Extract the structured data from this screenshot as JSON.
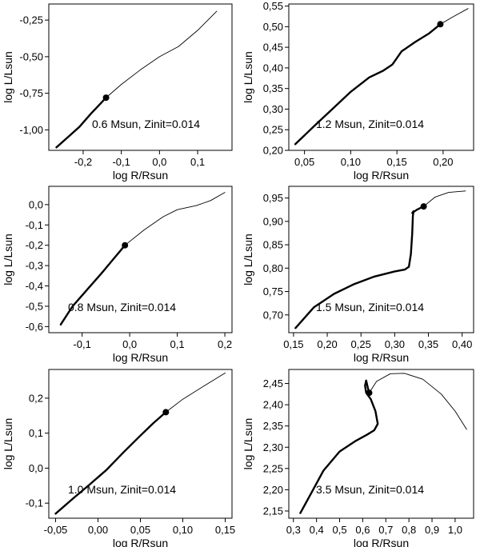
{
  "chart_data": [
    {
      "type": "line",
      "xlabel": "log R/Rsun",
      "ylabel": "log L/Lsun",
      "annotation": "0.6 Msun, Zinit=0.014",
      "xlim": [
        -0.29,
        0.19
      ],
      "ylim": [
        -1.14,
        -0.14
      ],
      "xticks": [
        -0.2,
        -0.1,
        0.0,
        0.1
      ],
      "xticklabels": [
        "-0,2",
        "-0,1",
        "0,0",
        "0,1"
      ],
      "yticks": [
        -1.0,
        -0.75,
        -0.5,
        -0.25
      ],
      "yticklabels": [
        "-1,00",
        "-0,75",
        "-0,50",
        "-0,25"
      ],
      "thick": [
        [
          -0.27,
          -1.12
        ],
        [
          -0.24,
          -1.05
        ],
        [
          -0.21,
          -0.98
        ],
        [
          -0.18,
          -0.89
        ],
        [
          -0.14,
          -0.78
        ]
      ],
      "thin": [
        [
          -0.14,
          -0.78
        ],
        [
          -0.1,
          -0.69
        ],
        [
          -0.05,
          -0.59
        ],
        [
          0.0,
          -0.5
        ],
        [
          0.05,
          -0.43
        ],
        [
          0.1,
          -0.32
        ],
        [
          0.15,
          -0.19
        ]
      ],
      "marker": [
        -0.14,
        -0.78
      ]
    },
    {
      "type": "line",
      "xlabel": "log R/Rsun",
      "ylabel": "log L/Lsun",
      "annotation": "1.2 Msun, Zinit=0.014",
      "xlim": [
        0.033,
        0.233
      ],
      "ylim": [
        0.2,
        0.555
      ],
      "xticks": [
        0.05,
        0.1,
        0.15,
        0.2
      ],
      "xticklabels": [
        "0,05",
        "0,10",
        "0,15",
        "0,20"
      ],
      "yticks": [
        0.2,
        0.25,
        0.3,
        0.35,
        0.4,
        0.45,
        0.5,
        0.55
      ],
      "yticklabels": [
        "0,20",
        "0,25",
        "0,30",
        "0,35",
        "0,40",
        "0,45",
        "0,50",
        "0,55"
      ],
      "thick": [
        [
          0.04,
          0.215
        ],
        [
          0.06,
          0.258
        ],
        [
          0.08,
          0.3
        ],
        [
          0.1,
          0.342
        ],
        [
          0.12,
          0.377
        ],
        [
          0.135,
          0.393
        ],
        [
          0.145,
          0.408
        ],
        [
          0.155,
          0.44
        ],
        [
          0.17,
          0.463
        ],
        [
          0.185,
          0.484
        ],
        [
          0.197,
          0.506
        ]
      ],
      "thin": [
        [
          0.197,
          0.506
        ],
        [
          0.21,
          0.523
        ],
        [
          0.227,
          0.544
        ]
      ],
      "marker": [
        0.197,
        0.506
      ]
    },
    {
      "type": "line",
      "xlabel": "log R/Rsun",
      "ylabel": "log L/Lsun",
      "annotation": "0.8 Msun, Zinit=0.014",
      "xlim": [
        -0.17,
        0.215
      ],
      "ylim": [
        -0.63,
        0.09
      ],
      "xticks": [
        -0.1,
        0.0,
        0.1,
        0.2
      ],
      "xticklabels": [
        "-0,1",
        "0,0",
        "0,1",
        "0,2"
      ],
      "yticks": [
        -0.6,
        -0.5,
        -0.4,
        -0.3,
        -0.2,
        -0.1,
        0.0
      ],
      "yticklabels": [
        "-0,6",
        "-0,5",
        "-0,4",
        "-0,3",
        "-0,2",
        "-0,1",
        "0,0"
      ],
      "thick": [
        [
          -0.145,
          -0.59
        ],
        [
          -0.12,
          -0.5
        ],
        [
          -0.09,
          -0.42
        ],
        [
          -0.06,
          -0.34
        ],
        [
          -0.035,
          -0.27
        ],
        [
          -0.01,
          -0.2
        ]
      ],
      "thin": [
        [
          -0.01,
          -0.2
        ],
        [
          0.03,
          -0.125
        ],
        [
          0.07,
          -0.06
        ],
        [
          0.1,
          -0.025
        ],
        [
          0.14,
          -0.005
        ],
        [
          0.17,
          0.02
        ],
        [
          0.2,
          0.06
        ]
      ],
      "marker": [
        -0.01,
        -0.2
      ]
    },
    {
      "type": "line",
      "xlabel": "log R/Rsun",
      "ylabel": "log L/Lsun",
      "annotation": "1.5 Msun, Zinit=0.014",
      "xlim": [
        0.143,
        0.417
      ],
      "ylim": [
        0.662,
        0.975
      ],
      "xticks": [
        0.15,
        0.2,
        0.25,
        0.3,
        0.35,
        0.4
      ],
      "xticklabels": [
        "0,15",
        "0,20",
        "0,25",
        "0,30",
        "0,35",
        "0,40"
      ],
      "yticks": [
        0.7,
        0.75,
        0.8,
        0.85,
        0.9,
        0.95
      ],
      "yticklabels": [
        "0,70",
        "0,75",
        "0,80",
        "0,85",
        "0,90",
        "0,95"
      ],
      "thick": [
        [
          0.153,
          0.672
        ],
        [
          0.18,
          0.716
        ],
        [
          0.21,
          0.745
        ],
        [
          0.24,
          0.766
        ],
        [
          0.27,
          0.782
        ],
        [
          0.3,
          0.793
        ],
        [
          0.315,
          0.797
        ],
        [
          0.321,
          0.803
        ],
        [
          0.324,
          0.83
        ],
        [
          0.326,
          0.875
        ],
        [
          0.327,
          0.912
        ],
        [
          0.328,
          0.922
        ],
        [
          0.326,
          0.918
        ],
        [
          0.333,
          0.925
        ],
        [
          0.343,
          0.932
        ]
      ],
      "thin": [
        [
          0.343,
          0.932
        ],
        [
          0.36,
          0.952
        ],
        [
          0.38,
          0.962
        ],
        [
          0.405,
          0.965
        ]
      ],
      "marker": [
        0.343,
        0.932
      ]
    },
    {
      "type": "line",
      "xlabel": "log R/Rsun",
      "ylabel": "log L/Lsun",
      "annotation": "1.0 Msun, Zinit=0.014",
      "xlim": [
        -0.058,
        0.158
      ],
      "ylim": [
        -0.143,
        0.282
      ],
      "xticks": [
        -0.05,
        0.0,
        0.05,
        0.1,
        0.15
      ],
      "xticklabels": [
        "-0,05",
        "0,00",
        "0,05",
        "0,10",
        "0,15"
      ],
      "yticks": [
        -0.1,
        0.0,
        0.1,
        0.2
      ],
      "yticklabels": [
        "-0,1",
        "0,0",
        "0,1",
        "0,2"
      ],
      "thick": [
        [
          -0.05,
          -0.13
        ],
        [
          -0.03,
          -0.088
        ],
        [
          -0.01,
          -0.047
        ],
        [
          0.01,
          -0.005
        ],
        [
          0.03,
          0.045
        ],
        [
          0.05,
          0.093
        ],
        [
          0.065,
          0.128
        ],
        [
          0.08,
          0.16
        ]
      ],
      "thin": [
        [
          0.08,
          0.16
        ],
        [
          0.1,
          0.197
        ],
        [
          0.125,
          0.235
        ],
        [
          0.15,
          0.272
        ]
      ],
      "marker": [
        0.08,
        0.16
      ]
    },
    {
      "type": "line",
      "xlabel": "log R/Rsun",
      "ylabel": "log L/Lsun",
      "annotation": "3.5 Msun, Zinit=0.014",
      "xlim": [
        0.28,
        1.08
      ],
      "ylim": [
        2.133,
        2.483
      ],
      "xticks": [
        0.3,
        0.4,
        0.5,
        0.6,
        0.7,
        0.8,
        0.9,
        1.0
      ],
      "xticklabels": [
        "0,3",
        "0,4",
        "0,5",
        "0,6",
        "0,7",
        "0,8",
        "0,9",
        "1,0"
      ],
      "yticks": [
        2.15,
        2.2,
        2.25,
        2.3,
        2.35,
        2.4,
        2.45
      ],
      "yticklabels": [
        "2,15",
        "2,20",
        "2,25",
        "2,30",
        "2,35",
        "2,40",
        "2,45"
      ],
      "thick": [
        [
          0.33,
          2.145
        ],
        [
          0.38,
          2.195
        ],
        [
          0.43,
          2.245
        ],
        [
          0.5,
          2.29
        ],
        [
          0.57,
          2.315
        ],
        [
          0.62,
          2.33
        ],
        [
          0.65,
          2.34
        ],
        [
          0.665,
          2.355
        ],
        [
          0.655,
          2.385
        ],
        [
          0.635,
          2.413
        ],
        [
          0.615,
          2.428
        ],
        [
          0.61,
          2.445
        ],
        [
          0.615,
          2.457
        ],
        [
          0.622,
          2.44
        ],
        [
          0.628,
          2.428
        ]
      ],
      "thin": [
        [
          0.628,
          2.428
        ],
        [
          0.66,
          2.455
        ],
        [
          0.72,
          2.473
        ],
        [
          0.78,
          2.474
        ],
        [
          0.86,
          2.46
        ],
        [
          0.94,
          2.425
        ],
        [
          1.0,
          2.385
        ],
        [
          1.05,
          2.342
        ]
      ],
      "marker": [
        0.628,
        2.428
      ]
    }
  ]
}
